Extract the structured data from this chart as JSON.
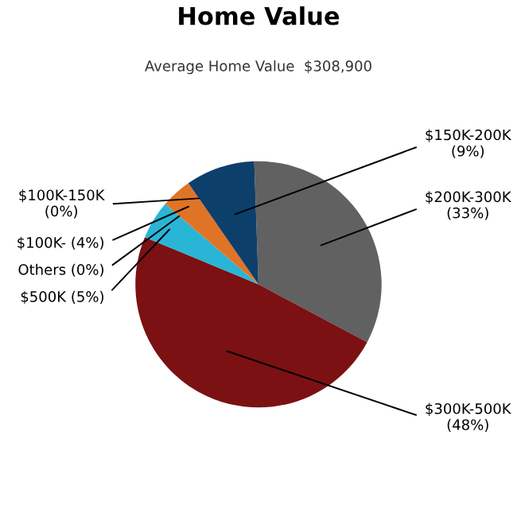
{
  "chart_data": {
    "type": "pie",
    "title": "Home Value",
    "subtitle": "Average Home Value  $308,900",
    "categories": [
      "$200K-300K",
      "$300K-500K",
      "$500K",
      "Others",
      "$100K-",
      "$100K-150K",
      "$150K-200K"
    ],
    "values": [
      33,
      48,
      5,
      0,
      4,
      0,
      9
    ],
    "value_labels": [
      "(33%)",
      "(48%)",
      "(5%)",
      "(0%)",
      "(4%)",
      "(0%)",
      "(9%)"
    ],
    "colors": [
      "#616161",
      "#7b1113",
      "#29b5d6",
      "#8a8a8a",
      "#e07426",
      "#c0c0c0",
      "#0d3f6b"
    ]
  }
}
